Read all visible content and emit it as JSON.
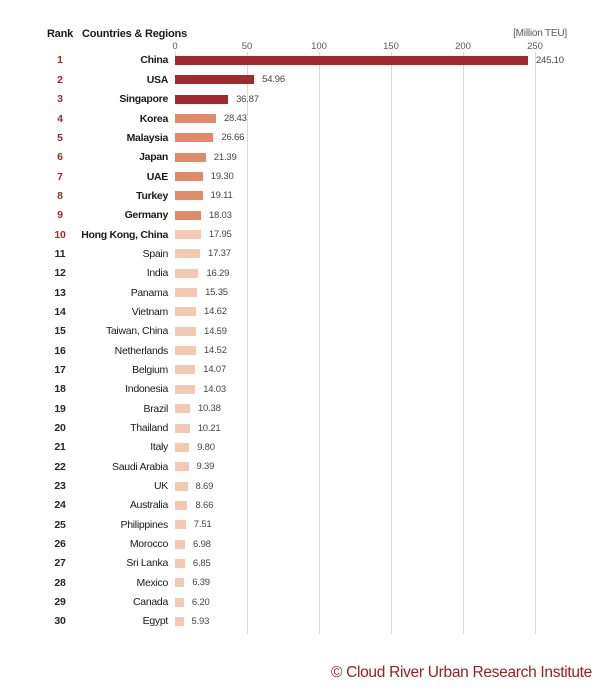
{
  "header": {
    "rank_label": "Rank",
    "countries_label": "Countries & Regions",
    "unit_label": "[Million TEU]"
  },
  "footer": {
    "credit": "© Cloud River Urban Research Institute"
  },
  "colors": {
    "bar_dark_red": "#A22A2C",
    "bar_medium_orange": "#E08A68",
    "bar_light_salmon": "#F3C9B1",
    "rank_highlight_red": "#A3282C",
    "gridline_gray": "#D9D9D9",
    "value_text_gray": "#454545",
    "tick_text_gray": "#595959",
    "label_black": "#1A1A1A",
    "footer_red": "#9D1D20"
  },
  "chart_data": {
    "type": "bar",
    "orientation": "horizontal",
    "title": "",
    "xlabel": "[Million TEU]",
    "xlim": [
      0,
      250
    ],
    "x_ticks": [
      0,
      50,
      100,
      150,
      200,
      250
    ],
    "grid": "vertical",
    "rows": [
      {
        "rank": 1,
        "name": "China",
        "value": "245.10",
        "tier": "dark"
      },
      {
        "rank": 2,
        "name": "USA",
        "value": "54.96",
        "tier": "dark"
      },
      {
        "rank": 3,
        "name": "Singapore",
        "value": "36.87",
        "tier": "dark"
      },
      {
        "rank": 4,
        "name": "Korea",
        "value": "28.43",
        "tier": "medium"
      },
      {
        "rank": 5,
        "name": "Malaysia",
        "value": "26.66",
        "tier": "medium"
      },
      {
        "rank": 6,
        "name": "Japan",
        "value": "21.39",
        "tier": "medium"
      },
      {
        "rank": 7,
        "name": "UAE",
        "value": "19.30",
        "tier": "medium"
      },
      {
        "rank": 8,
        "name": "Turkey",
        "value": "19.11",
        "tier": "medium"
      },
      {
        "rank": 9,
        "name": "Germany",
        "value": "18.03",
        "tier": "medium"
      },
      {
        "rank": 10,
        "name": "Hong Kong, China",
        "value": "17.95",
        "tier": "light"
      },
      {
        "rank": 11,
        "name": "Spain",
        "value": "17.37",
        "tier": "light"
      },
      {
        "rank": 12,
        "name": "India",
        "value": "16.29",
        "tier": "light"
      },
      {
        "rank": 13,
        "name": "Panama",
        "value": "15.35",
        "tier": "light"
      },
      {
        "rank": 14,
        "name": "Vietnam",
        "value": "14.62",
        "tier": "light"
      },
      {
        "rank": 15,
        "name": "Taiwan, China",
        "value": "14.59",
        "tier": "light"
      },
      {
        "rank": 16,
        "name": "Netherlands",
        "value": "14.52",
        "tier": "light"
      },
      {
        "rank": 17,
        "name": "Belgium",
        "value": "14.07",
        "tier": "light"
      },
      {
        "rank": 18,
        "name": "Indonesia",
        "value": "14.03",
        "tier": "light"
      },
      {
        "rank": 19,
        "name": "Brazil",
        "value": "10.38",
        "tier": "light"
      },
      {
        "rank": 20,
        "name": "Thailand",
        "value": "10.21",
        "tier": "light"
      },
      {
        "rank": 21,
        "name": "Italy",
        "value": "9.80",
        "tier": "light"
      },
      {
        "rank": 22,
        "name": "Saudi Arabia",
        "value": "9.39",
        "tier": "light"
      },
      {
        "rank": 23,
        "name": "UK",
        "value": "8.69",
        "tier": "light"
      },
      {
        "rank": 24,
        "name": "Australia",
        "value": "8.66",
        "tier": "light"
      },
      {
        "rank": 25,
        "name": "Philippines",
        "value": "7.51",
        "tier": "light"
      },
      {
        "rank": 26,
        "name": "Morocco",
        "value": "6.98",
        "tier": "light"
      },
      {
        "rank": 27,
        "name": "Sri Lanka",
        "value": "6.85",
        "tier": "light"
      },
      {
        "rank": 28,
        "name": "Mexico",
        "value": "6.39",
        "tier": "light"
      },
      {
        "rank": 29,
        "name": "Canada",
        "value": "6.20",
        "tier": "light"
      },
      {
        "rank": 30,
        "name": "Egypt",
        "value": "5.93",
        "tier": "light"
      }
    ]
  }
}
